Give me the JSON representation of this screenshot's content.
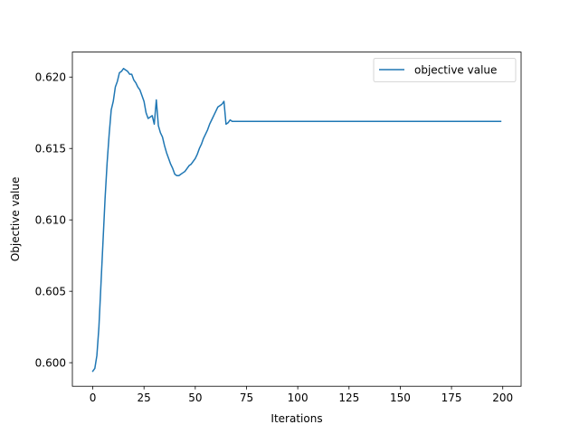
{
  "chart_data": {
    "type": "line",
    "title": "",
    "xlabel": "Iterations",
    "ylabel": "Objective value",
    "xlim": [
      -9.95,
      208.95
    ],
    "ylim": [
      0.59835,
      0.62175
    ],
    "xticks": [
      0,
      25,
      50,
      75,
      100,
      125,
      150,
      175,
      200
    ],
    "xtick_labels": [
      "0",
      "25",
      "50",
      "75",
      "100",
      "125",
      "150",
      "175",
      "200"
    ],
    "yticks": [
      0.6,
      0.605,
      0.61,
      0.615,
      0.62
    ],
    "ytick_labels": [
      "0.600",
      "0.605",
      "0.610",
      "0.615",
      "0.620"
    ],
    "grid": false,
    "legend_position": "top-right",
    "series": [
      {
        "name": "objective value",
        "color": "#1f77b4",
        "x": [
          0,
          1,
          2,
          3,
          4,
          5,
          6,
          7,
          8,
          9,
          10,
          11,
          12,
          13,
          14,
          15,
          16,
          17,
          18,
          19,
          20,
          21,
          22,
          23,
          24,
          25,
          26,
          27,
          28,
          29,
          30,
          31,
          32,
          33,
          34,
          35,
          36,
          37,
          38,
          39,
          40,
          41,
          42,
          43,
          44,
          45,
          46,
          47,
          48,
          49,
          50,
          51,
          52,
          53,
          54,
          55,
          56,
          57,
          58,
          59,
          60,
          61,
          62,
          63,
          64,
          65,
          66,
          67,
          68,
          69,
          70,
          71,
          72,
          199
        ],
        "y": [
          0.5994,
          0.5996,
          0.6005,
          0.6025,
          0.6055,
          0.6085,
          0.6115,
          0.614,
          0.616,
          0.6177,
          0.6183,
          0.6193,
          0.6197,
          0.6203,
          0.6204,
          0.6206,
          0.6205,
          0.6204,
          0.6202,
          0.6202,
          0.6198,
          0.6196,
          0.6193,
          0.6191,
          0.6187,
          0.6183,
          0.6175,
          0.6171,
          0.6172,
          0.6173,
          0.6167,
          0.6184,
          0.6166,
          0.6161,
          0.6158,
          0.6152,
          0.6147,
          0.6143,
          0.6139,
          0.6136,
          0.6132,
          0.6131,
          0.6131,
          0.6132,
          0.6133,
          0.6134,
          0.6136,
          0.6138,
          0.6139,
          0.6141,
          0.6143,
          0.6146,
          0.615,
          0.6153,
          0.6157,
          0.616,
          0.6163,
          0.6167,
          0.617,
          0.6173,
          0.6176,
          0.6179,
          0.618,
          0.6181,
          0.6183,
          0.6167,
          0.6168,
          0.617,
          0.6169,
          0.6169,
          0.6169,
          0.6169,
          0.6169,
          0.6169
        ]
      }
    ]
  }
}
